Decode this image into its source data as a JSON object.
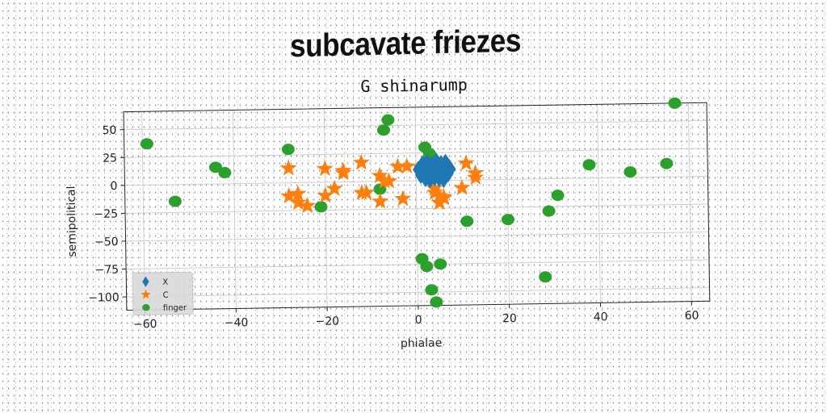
{
  "title": "subcavate friezes",
  "chart_data": {
    "type": "scatter",
    "subtitle": "G shinarump",
    "xlabel": "phialae",
    "ylabel": "semipolitical",
    "xlim": [
      -64,
      64
    ],
    "ylim": [
      -112,
      66
    ],
    "xticks": [
      -60,
      -40,
      -20,
      0,
      20,
      40,
      60
    ],
    "yticks": [
      50,
      25,
      0,
      -25,
      -50,
      -75,
      -100
    ],
    "xtick_labels": [
      "−60",
      "−40",
      "−20",
      "0",
      "20",
      "40",
      "60"
    ],
    "ytick_labels": [
      "50",
      "25",
      "0",
      "−25",
      "−50",
      "−75",
      "−100"
    ],
    "grid": true,
    "legend_position": "lower-left",
    "series": [
      {
        "name": "X",
        "marker": "diamond",
        "color": "#1f77b4",
        "x": [
          0.5,
          1.0,
          1.5,
          2.0,
          2.5,
          3.0,
          3.5,
          4.0,
          4.5,
          5.0,
          5.5,
          6.0,
          6.5,
          7.0,
          7.5,
          1.0,
          2.0,
          3.0,
          4.0,
          5.0,
          6.0,
          7.0,
          1.5,
          2.5,
          3.5,
          4.5,
          5.5,
          6.5,
          2.0,
          3.0,
          4.0,
          5.0,
          6.0
        ],
        "y": [
          10,
          12,
          8,
          14,
          11,
          9,
          13,
          10,
          12,
          8,
          14,
          11,
          9,
          13,
          10,
          5,
          4,
          6,
          3,
          5,
          4,
          6,
          15,
          16,
          14,
          17,
          15,
          16,
          2,
          1,
          3,
          2,
          1
        ]
      },
      {
        "name": "C",
        "marker": "star",
        "color": "#ff7f0e",
        "x": [
          -28,
          -28,
          -26,
          -26,
          -24,
          -20,
          -20,
          -18,
          -16,
          -16,
          -12,
          -12,
          -11,
          -8,
          -8,
          -7,
          -4,
          -3,
          -2,
          1,
          2,
          4,
          4,
          4,
          5,
          5,
          6,
          6,
          10,
          11,
          13,
          13,
          -6
        ],
        "y": [
          13,
          -12,
          -10,
          -18,
          -21,
          -12,
          12,
          -6,
          8,
          10,
          -10,
          17,
          -10,
          -18,
          5,
          0,
          13,
          -16,
          13,
          12,
          12,
          -11,
          13,
          -7,
          -14,
          -20,
          -15,
          -16,
          -7,
          15,
          2,
          6,
          0
        ]
      },
      {
        "name": "finger",
        "marker": "circle",
        "color": "#2ca02c",
        "x": [
          -59,
          -53,
          -44,
          -42,
          -28,
          -21,
          -8,
          -7,
          -6,
          2,
          3,
          1,
          2,
          3,
          4,
          5,
          11,
          20,
          28,
          29,
          31,
          38,
          47,
          55,
          57
        ],
        "y": [
          37,
          -15,
          15,
          10,
          30,
          -22,
          -7,
          46,
          55,
          30,
          24,
          -70,
          -77,
          -98,
          -109,
          -75,
          -37,
          -36,
          -88,
          -29,
          -15,
          12,
          5,
          12,
          66
        ]
      }
    ]
  }
}
